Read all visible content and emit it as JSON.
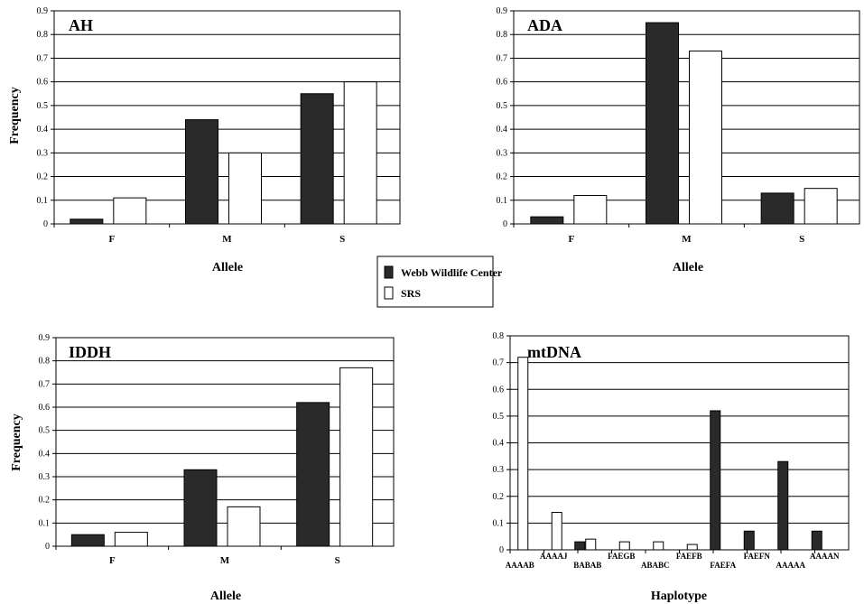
{
  "legend": {
    "series": [
      "Webb Wildlife Center",
      "SRS"
    ]
  },
  "colors": {
    "webb_fill": "#2a2a2a",
    "srs_fill": "#ffffff",
    "axis": "#000000"
  },
  "chart_data": [
    {
      "type": "bar",
      "title": "AH",
      "xlabel": "Allele",
      "ylabel": "Frequency",
      "categories": [
        "F",
        "M",
        "S"
      ],
      "ylim": [
        0,
        0.9
      ],
      "yticks": [
        "0",
        "0.1",
        "0.2",
        "0.3",
        "0.4",
        "0.5",
        "0.6",
        "0.7",
        "0.8",
        "0.9"
      ],
      "grid": true,
      "series": [
        {
          "name": "Webb Wildlife Center",
          "values": [
            0.02,
            0.44,
            0.55
          ]
        },
        {
          "name": "SRS",
          "values": [
            0.11,
            0.3,
            0.6
          ]
        }
      ]
    },
    {
      "type": "bar",
      "title": "ADA",
      "xlabel": "Allele",
      "ylabel": "",
      "categories": [
        "F",
        "M",
        "S"
      ],
      "ylim": [
        0,
        0.9
      ],
      "yticks": [
        "0",
        "0.1",
        "0.2",
        "0.3",
        "0.4",
        "0.5",
        "0.6",
        "0.7",
        "0.8",
        "0.9"
      ],
      "grid": true,
      "series": [
        {
          "name": "Webb Wildlife Center",
          "values": [
            0.03,
            0.85,
            0.13
          ]
        },
        {
          "name": "SRS",
          "values": [
            0.12,
            0.73,
            0.15
          ]
        }
      ]
    },
    {
      "type": "bar",
      "title": "IDDH",
      "xlabel": "Allele",
      "ylabel": "Frequency",
      "categories": [
        "F",
        "M",
        "S"
      ],
      "ylim": [
        0,
        0.9
      ],
      "yticks": [
        "0",
        "0.1",
        "0.2",
        "0.3",
        "0.4",
        "0.5",
        "0.6",
        "0.7",
        "0.8",
        "0.9"
      ],
      "grid": true,
      "series": [
        {
          "name": "Webb Wildlife Center",
          "values": [
            0.05,
            0.33,
            0.62
          ]
        },
        {
          "name": "SRS",
          "values": [
            0.06,
            0.17,
            0.77
          ]
        }
      ]
    },
    {
      "type": "bar",
      "title": "mtDNA",
      "xlabel": "Haplotype",
      "ylabel": "",
      "categories": [
        "AAAAB",
        "AAAAJ",
        "BABAB",
        "FAEGB",
        "ABABC",
        "FAEFB",
        "FAEFA",
        "FAEFN",
        "AAAAA",
        "AAAAN"
      ],
      "ylim": [
        0,
        0.8
      ],
      "yticks": [
        "0",
        "0.1",
        "0.2",
        "0.3",
        "0.4",
        "0.5",
        "0.6",
        "0.7",
        "0.8"
      ],
      "grid": true,
      "series": [
        {
          "name": "Webb Wildlife Center",
          "values": [
            0,
            0,
            0.03,
            0,
            0,
            0,
            0.52,
            0.07,
            0.33,
            0.07
          ]
        },
        {
          "name": "SRS",
          "values": [
            0.72,
            0.14,
            0.04,
            0.03,
            0.03,
            0.02,
            0,
            0,
            0,
            0
          ]
        }
      ]
    }
  ]
}
